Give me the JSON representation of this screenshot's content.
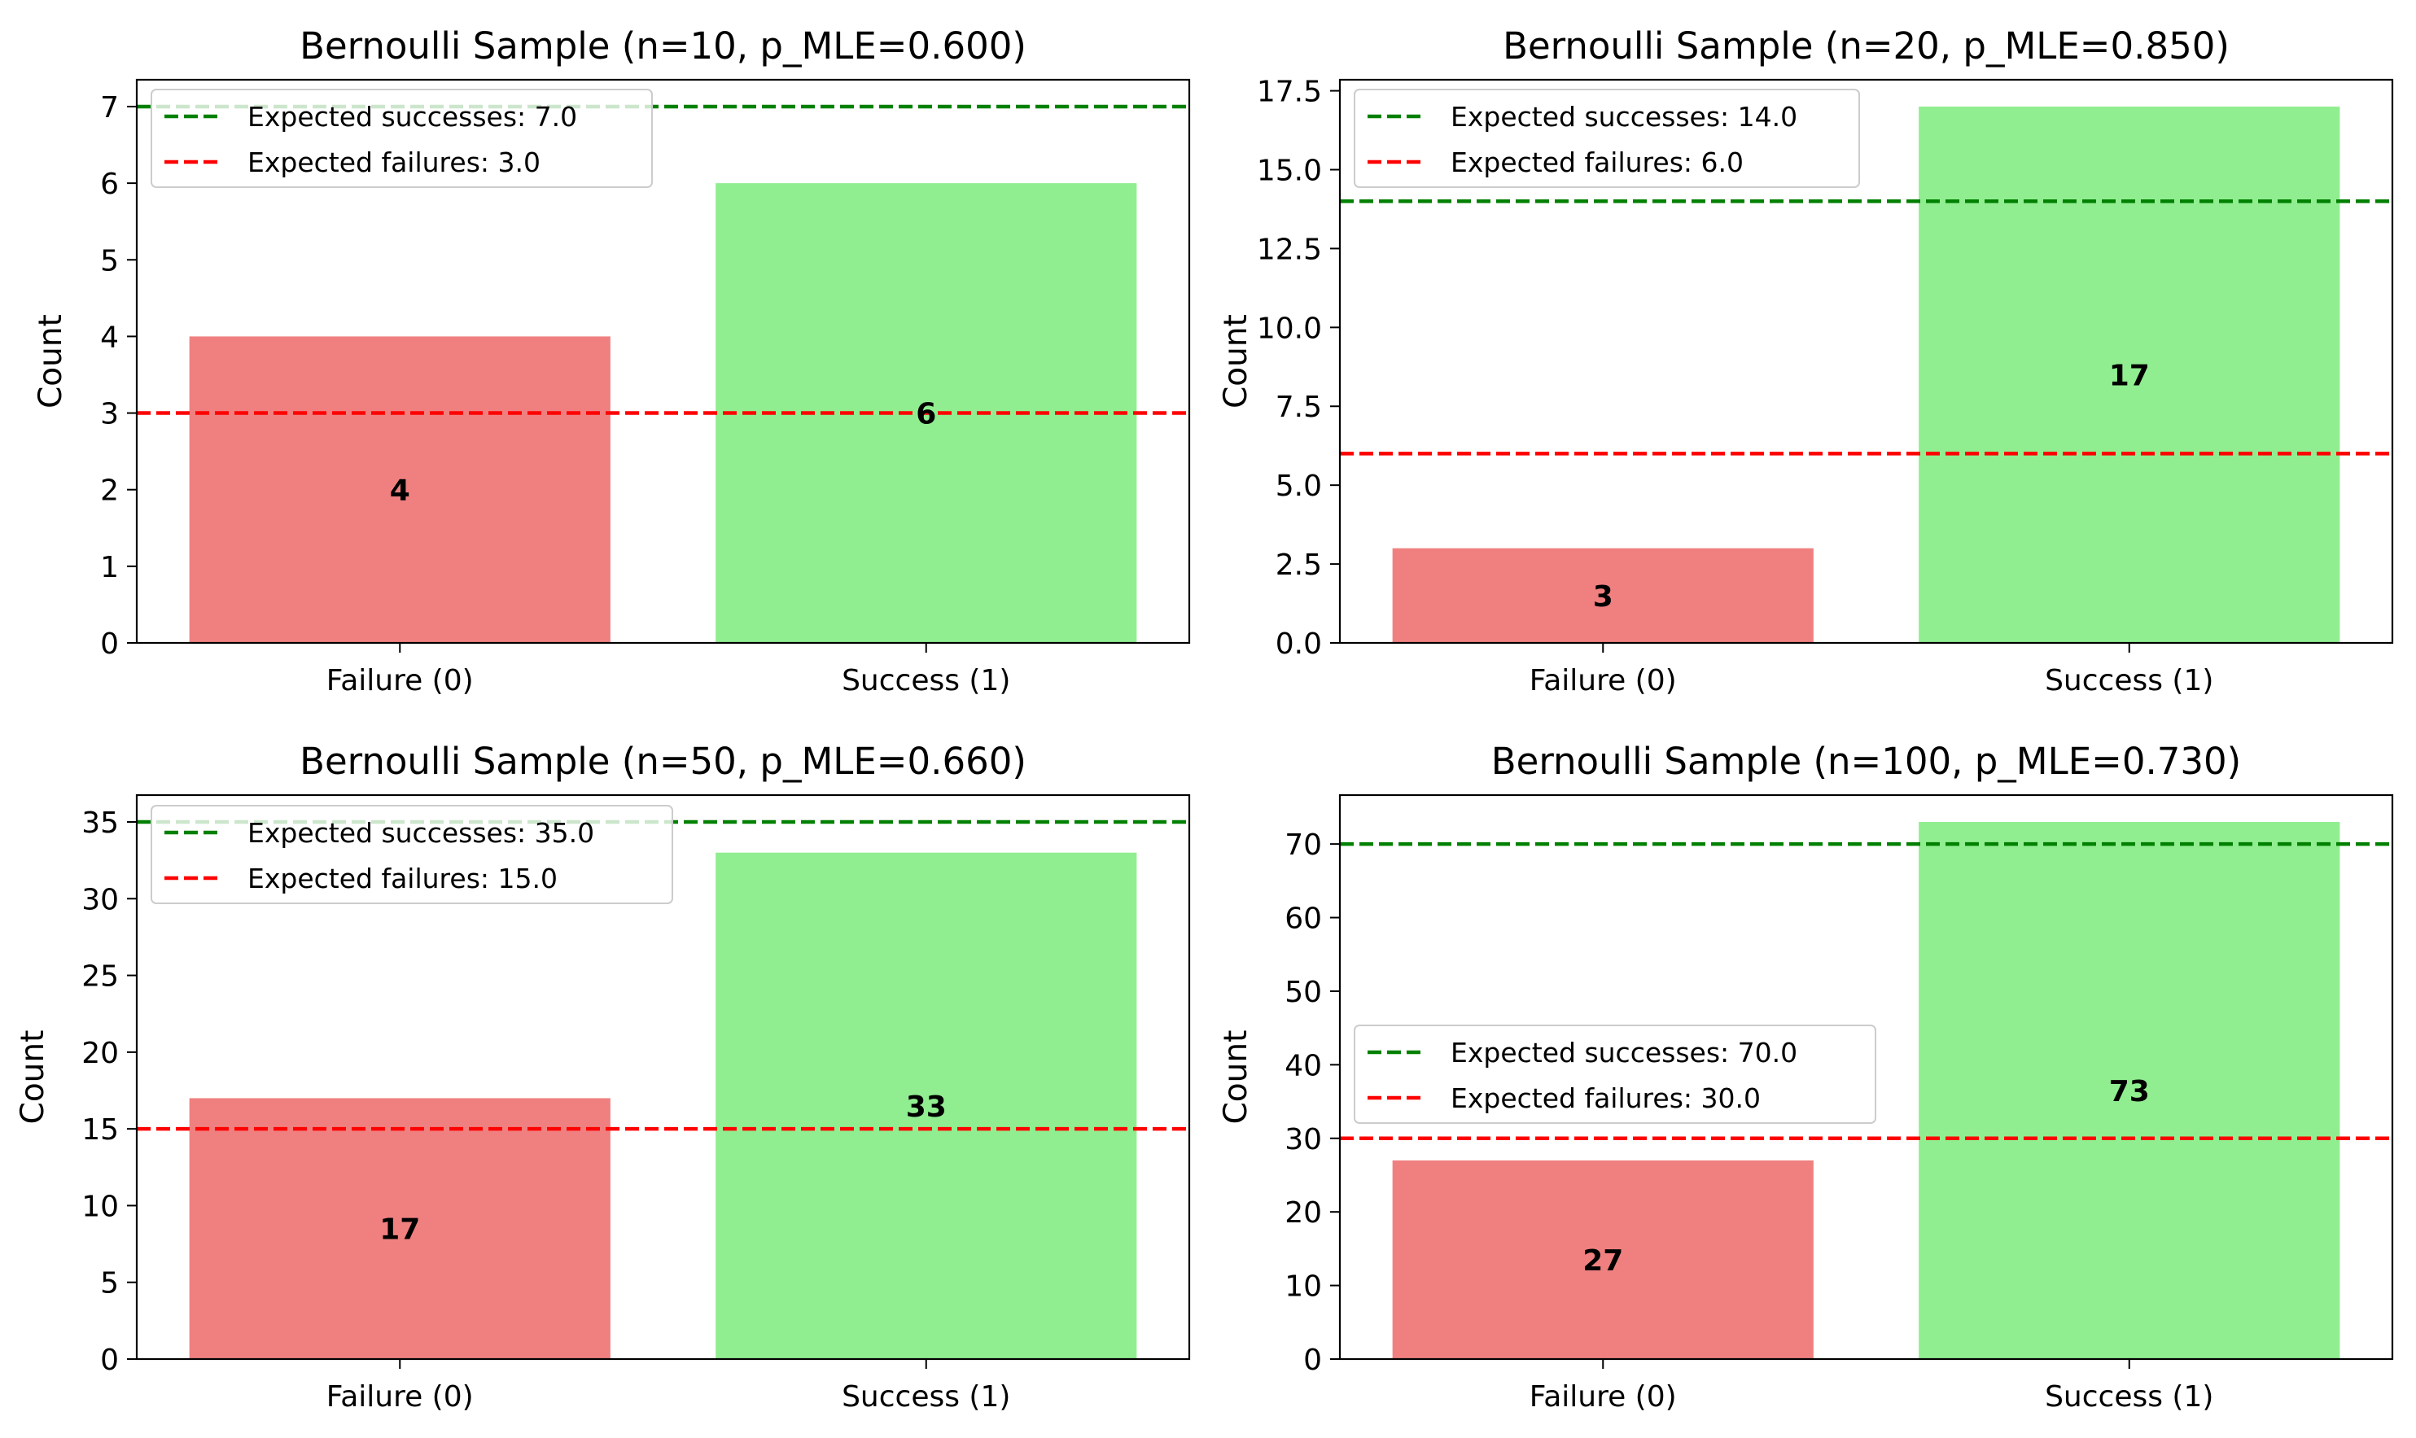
{
  "chart_data": [
    {
      "type": "bar",
      "title": "Bernoulli Sample (n=10, p_MLE=0.600)",
      "ylabel": "Count",
      "xlabel": "",
      "categories": [
        "Failure (0)",
        "Success (1)"
      ],
      "values": [
        4,
        6
      ],
      "bar_colors": [
        "#f08080",
        "#90ee90"
      ],
      "ylim": [
        0,
        7.35
      ],
      "yticks": [
        "0",
        "1",
        "2",
        "3",
        "4",
        "5",
        "6",
        "7"
      ],
      "ytick_values": [
        0,
        1,
        2,
        3,
        4,
        5,
        6,
        7
      ],
      "reference_lines": [
        {
          "label": "Expected successes: 7.0",
          "value": 7.0,
          "color": "#008000",
          "style": "dashed"
        },
        {
          "label": "Expected failures: 3.0",
          "value": 3.0,
          "color": "#ff0000",
          "style": "dashed"
        }
      ],
      "legend_position": "upper left",
      "grid": false
    },
    {
      "type": "bar",
      "title": "Bernoulli Sample (n=20, p_MLE=0.850)",
      "ylabel": "Count",
      "xlabel": "",
      "categories": [
        "Failure (0)",
        "Success (1)"
      ],
      "values": [
        3,
        17
      ],
      "bar_colors": [
        "#f08080",
        "#90ee90"
      ],
      "ylim": [
        0,
        17.85
      ],
      "yticks": [
        "0.0",
        "2.5",
        "5.0",
        "7.5",
        "10.0",
        "12.5",
        "15.0",
        "17.5"
      ],
      "ytick_values": [
        0,
        2.5,
        5,
        7.5,
        10,
        12.5,
        15,
        17.5
      ],
      "reference_lines": [
        {
          "label": "Expected successes: 14.0",
          "value": 14.0,
          "color": "#008000",
          "style": "dashed"
        },
        {
          "label": "Expected failures: 6.0",
          "value": 6.0,
          "color": "#ff0000",
          "style": "dashed"
        }
      ],
      "legend_position": "upper left",
      "grid": false
    },
    {
      "type": "bar",
      "title": "Bernoulli Sample (n=50, p_MLE=0.660)",
      "ylabel": "Count",
      "xlabel": "",
      "categories": [
        "Failure (0)",
        "Success (1)"
      ],
      "values": [
        17,
        33
      ],
      "bar_colors": [
        "#f08080",
        "#90ee90"
      ],
      "ylim": [
        0,
        36.75
      ],
      "yticks": [
        "0",
        "5",
        "10",
        "15",
        "20",
        "25",
        "30",
        "35"
      ],
      "ytick_values": [
        0,
        5,
        10,
        15,
        20,
        25,
        30,
        35
      ],
      "reference_lines": [
        {
          "label": "Expected successes: 35.0",
          "value": 35.0,
          "color": "#008000",
          "style": "dashed"
        },
        {
          "label": "Expected failures: 15.0",
          "value": 15.0,
          "color": "#ff0000",
          "style": "dashed"
        }
      ],
      "legend_position": "upper left",
      "grid": false
    },
    {
      "type": "bar",
      "title": "Bernoulli Sample (n=100, p_MLE=0.730)",
      "ylabel": "Count",
      "xlabel": "",
      "categories": [
        "Failure (0)",
        "Success (1)"
      ],
      "values": [
        27,
        73
      ],
      "bar_colors": [
        "#f08080",
        "#90ee90"
      ],
      "ylim": [
        0,
        76.65
      ],
      "yticks": [
        "0",
        "10",
        "20",
        "30",
        "40",
        "50",
        "60",
        "70"
      ],
      "ytick_values": [
        0,
        10,
        20,
        30,
        40,
        50,
        60,
        70
      ],
      "reference_lines": [
        {
          "label": "Expected successes: 70.0",
          "value": 70.0,
          "color": "#008000",
          "style": "dashed"
        },
        {
          "label": "Expected failures: 30.0",
          "value": 30.0,
          "color": "#ff0000",
          "style": "dashed"
        }
      ],
      "legend_position": "center left",
      "grid": false
    }
  ]
}
